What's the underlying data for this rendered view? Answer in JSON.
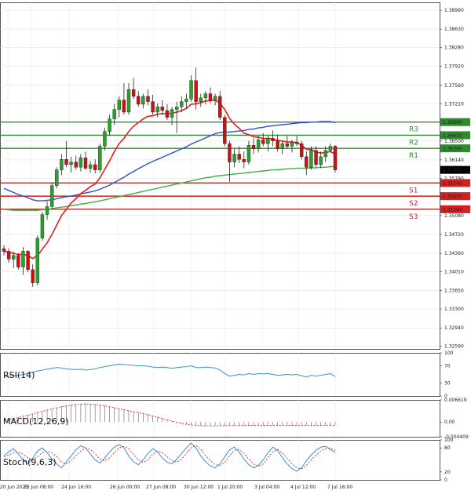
{
  "chart_data": {
    "type": "candlestick",
    "instrument_panels": [
      {
        "name": "price",
        "type": "candlestick"
      },
      {
        "name": "RSI",
        "label": "RSI(14)"
      },
      {
        "name": "MACD",
        "label": "MACD(12,26,9)"
      },
      {
        "name": "Stoch",
        "label": "Stoch(9,6,3)"
      }
    ],
    "price_axis": {
      "ylim": [
        1.3254,
        1.3914
      ],
      "ticks": [
        "1.38990",
        "1.38630",
        "1.38280",
        "1.37920",
        "1.37560",
        "1.37210",
        "1.36860",
        "1.36500",
        "1.36140",
        "1.35790",
        "1.35440",
        "1.35080",
        "1.34720",
        "1.34360",
        "1.34010",
        "1.33650",
        "1.33300",
        "1.32940",
        "1.32590"
      ]
    },
    "x_axis_labels": [
      "20 Jun 2025",
      "23 Jun 08:00",
      "24 Jun 16:00",
      "26 Jun 00:00",
      "27 Jun 08:00",
      "30 Jun 12:00",
      "1 Jul 20:00",
      "3 Jul 04:00",
      "4 Jul 12:00",
      "7 Jul 16:00"
    ],
    "current_price": {
      "label": "1.35950",
      "value": 1.3595
    },
    "levels": [
      {
        "name": "R3",
        "price_label": "1.36860",
        "value": 1.3686,
        "color": "#2e8b2e"
      },
      {
        "name": "R2",
        "price_label": "1.36610",
        "value": 1.3661,
        "color": "#2e8b2e"
      },
      {
        "name": "R1",
        "price_label": "1.36360",
        "value": 1.3636,
        "color": "#2e8b2e"
      },
      {
        "name": "S1",
        "price_label": "1.35700",
        "value": 1.357,
        "color": "#d42020"
      },
      {
        "name": "S2",
        "price_label": "1.35450",
        "value": 1.3545,
        "color": "#d42020"
      },
      {
        "name": "S3",
        "price_label": "1.35200",
        "value": 1.352,
        "color": "#d42020"
      }
    ],
    "candles": [
      [
        1.3445,
        1.3452,
        1.3432,
        1.344
      ],
      [
        1.344,
        1.3446,
        1.3418,
        1.3425
      ],
      [
        1.3425,
        1.344,
        1.3408,
        1.3432
      ],
      [
        1.3432,
        1.3436,
        1.3405,
        1.341
      ],
      [
        1.341,
        1.3448,
        1.3395,
        1.344
      ],
      [
        1.344,
        1.3442,
        1.34,
        1.3405
      ],
      [
        1.3405,
        1.3415,
        1.3372,
        1.338
      ],
      [
        1.338,
        1.347,
        1.3375,
        1.3465
      ],
      [
        1.3465,
        1.3515,
        1.346,
        1.351
      ],
      [
        1.351,
        1.3535,
        1.35,
        1.3525
      ],
      [
        1.3525,
        1.357,
        1.352,
        1.3565
      ],
      [
        1.3565,
        1.36,
        1.356,
        1.3595
      ],
      [
        1.3595,
        1.3625,
        1.3585,
        1.3615
      ],
      [
        1.3615,
        1.365,
        1.36,
        1.3605
      ],
      [
        1.3605,
        1.362,
        1.359,
        1.361
      ],
      [
        1.361,
        1.3622,
        1.3595,
        1.36
      ],
      [
        1.36,
        1.3625,
        1.3592,
        1.3618
      ],
      [
        1.3618,
        1.363,
        1.3595,
        1.3598
      ],
      [
        1.3598,
        1.3612,
        1.359,
        1.3605
      ],
      [
        1.3605,
        1.3615,
        1.3588,
        1.3595
      ],
      [
        1.3595,
        1.3645,
        1.359,
        1.364
      ],
      [
        1.364,
        1.3675,
        1.3632,
        1.3668
      ],
      [
        1.3668,
        1.37,
        1.366,
        1.3692
      ],
      [
        1.3692,
        1.372,
        1.368,
        1.371
      ],
      [
        1.371,
        1.3735,
        1.3695,
        1.3728
      ],
      [
        1.3728,
        1.376,
        1.37,
        1.3705
      ],
      [
        1.3705,
        1.376,
        1.37,
        1.3748
      ],
      [
        1.3748,
        1.377,
        1.373,
        1.3735
      ],
      [
        1.3735,
        1.3745,
        1.3715,
        1.372
      ],
      [
        1.372,
        1.374,
        1.3712,
        1.3735
      ],
      [
        1.3735,
        1.3748,
        1.3718,
        1.3725
      ],
      [
        1.3725,
        1.3738,
        1.37,
        1.3705
      ],
      [
        1.3705,
        1.3722,
        1.3695,
        1.3715
      ],
      [
        1.3715,
        1.3728,
        1.37,
        1.3708
      ],
      [
        1.3708,
        1.372,
        1.369,
        1.3695
      ],
      [
        1.3695,
        1.3715,
        1.368,
        1.371
      ],
      [
        1.371,
        1.3725,
        1.3665,
        1.3715
      ],
      [
        1.3715,
        1.3735,
        1.3705,
        1.3725
      ],
      [
        1.3725,
        1.374,
        1.3712,
        1.373
      ],
      [
        1.373,
        1.3775,
        1.3725,
        1.3765
      ],
      [
        1.3765,
        1.379,
        1.371,
        1.3725
      ],
      [
        1.3725,
        1.374,
        1.3715,
        1.3732
      ],
      [
        1.3732,
        1.3745,
        1.372,
        1.374
      ],
      [
        1.374,
        1.3752,
        1.3722,
        1.3728
      ],
      [
        1.3728,
        1.374,
        1.3718,
        1.3735
      ],
      [
        1.3735,
        1.3745,
        1.369,
        1.3695
      ],
      [
        1.3695,
        1.37,
        1.364,
        1.3645
      ],
      [
        1.3645,
        1.365,
        1.3572,
        1.361
      ],
      [
        1.361,
        1.3635,
        1.36,
        1.3625
      ],
      [
        1.3625,
        1.364,
        1.3608,
        1.3615
      ],
      [
        1.3615,
        1.363,
        1.3598,
        1.361
      ],
      [
        1.361,
        1.365,
        1.3605,
        1.3642
      ],
      [
        1.3642,
        1.3655,
        1.3625,
        1.3635
      ],
      [
        1.3635,
        1.366,
        1.3628,
        1.3652
      ],
      [
        1.3652,
        1.3665,
        1.364,
        1.3645
      ],
      [
        1.3645,
        1.366,
        1.363,
        1.3655
      ],
      [
        1.3655,
        1.367,
        1.364,
        1.365
      ],
      [
        1.365,
        1.3662,
        1.363,
        1.3635
      ],
      [
        1.3635,
        1.365,
        1.3625,
        1.3645
      ],
      [
        1.3645,
        1.366,
        1.3635,
        1.364
      ],
      [
        1.364,
        1.3652,
        1.3628,
        1.3648
      ],
      [
        1.3648,
        1.366,
        1.364,
        1.3645
      ],
      [
        1.3645,
        1.365,
        1.3615,
        1.362
      ],
      [
        1.362,
        1.363,
        1.3585,
        1.36
      ],
      [
        1.36,
        1.364,
        1.3595,
        1.3632
      ],
      [
        1.3632,
        1.364,
        1.36,
        1.3605
      ],
      [
        1.3605,
        1.363,
        1.3598,
        1.362
      ],
      [
        1.362,
        1.364,
        1.361,
        1.3632
      ],
      [
        1.3632,
        1.3645,
        1.3628,
        1.364
      ],
      [
        1.364,
        1.3642,
        1.359,
        1.3595
      ]
    ],
    "ema_red": [
      1.344,
      1.3438,
      1.3436,
      1.3434,
      1.3434,
      1.3432,
      1.3426,
      1.3432,
      1.3444,
      1.3456,
      1.3472,
      1.349,
      1.3508,
      1.352,
      1.3532,
      1.354,
      1.355,
      1.3556,
      1.3563,
      1.3568,
      1.358,
      1.3596,
      1.3612,
      1.363,
      1.3645,
      1.3655,
      1.3668,
      1.3678,
      1.3685,
      1.3692,
      1.3697,
      1.3698,
      1.3701,
      1.3702,
      1.3702,
      1.3703,
      1.3705,
      1.3708,
      1.3712,
      1.372,
      1.3721,
      1.3723,
      1.3726,
      1.3727,
      1.3728,
      1.3722,
      1.371,
      1.3693,
      1.3682,
      1.3674,
      1.3665,
      1.3662,
      1.3658,
      1.3657,
      1.3655,
      1.3655,
      1.3654,
      1.3651,
      1.365,
      1.3648,
      1.3648,
      1.3647,
      1.3642,
      1.3634,
      1.3634,
      1.3629,
      1.3627,
      1.3628,
      1.363,
      1.3625
    ],
    "ema_blue": [
      1.356,
      1.3556,
      1.3552,
      1.3548,
      1.3545,
      1.3542,
      1.3538,
      1.3536,
      1.3536,
      1.3537,
      1.3538,
      1.354,
      1.3542,
      1.3544,
      1.3545,
      1.3547,
      1.3549,
      1.3551,
      1.3553,
      1.3555,
      1.3558,
      1.3562,
      1.3566,
      1.3571,
      1.3576,
      1.3581,
      1.3587,
      1.3592,
      1.3597,
      1.3602,
      1.3607,
      1.3611,
      1.3615,
      1.3619,
      1.3623,
      1.3627,
      1.3631,
      1.3635,
      1.3639,
      1.3644,
      1.3648,
      1.3652,
      1.3656,
      1.366,
      1.3664,
      1.3666,
      1.3667,
      1.3667,
      1.3668,
      1.3669,
      1.367,
      1.3672,
      1.3673,
      1.3675,
      1.3676,
      1.3678,
      1.3679,
      1.368,
      1.3681,
      1.3682,
      1.3683,
      1.3684,
      1.3685,
      1.3685,
      1.3686,
      1.3686,
      1.3687,
      1.3687,
      1.3687,
      1.3685
    ],
    "ema_green": [
      1.352,
      1.3519,
      1.3518,
      1.3518,
      1.3518,
      1.3518,
      1.3518,
      1.3518,
      1.3519,
      1.352,
      1.3521,
      1.3523,
      1.3524,
      1.3525,
      1.3527,
      1.3528,
      1.353,
      1.3531,
      1.3533,
      1.3534,
      1.3536,
      1.3538,
      1.354,
      1.3542,
      1.3544,
      1.3546,
      1.3548,
      1.355,
      1.3552,
      1.3554,
      1.3556,
      1.3558,
      1.356,
      1.3562,
      1.3564,
      1.3566,
      1.3568,
      1.357,
      1.3572,
      1.3574,
      1.3576,
      1.3578,
      1.358,
      1.3581,
      1.3583,
      1.3584,
      1.3585,
      1.3586,
      1.3587,
      1.3588,
      1.3589,
      1.359,
      1.3591,
      1.3592,
      1.3593,
      1.3594,
      1.3595,
      1.3595,
      1.3596,
      1.3597,
      1.3597,
      1.3598,
      1.3598,
      1.3598,
      1.3599,
      1.3599,
      1.36,
      1.36,
      1.3601,
      1.3601
    ],
    "rsi": {
      "ylim": [
        0,
        100
      ],
      "ticks": [
        "100",
        "70",
        "30",
        "0"
      ],
      "values": [
        45,
        46,
        48,
        47,
        50,
        52,
        55,
        58,
        60,
        62,
        64,
        66,
        65,
        63,
        62,
        61,
        62,
        60,
        61,
        63,
        66,
        68,
        70,
        72,
        74,
        73,
        72,
        71,
        70,
        70,
        69,
        67,
        66,
        67,
        66,
        64,
        66,
        67,
        68,
        70,
        66,
        66,
        67,
        66,
        65,
        60,
        52,
        46,
        48,
        50,
        49,
        52,
        50,
        52,
        51,
        52,
        50,
        48,
        49,
        50,
        49,
        50,
        47,
        44,
        48,
        46,
        48,
        50,
        52,
        45
      ]
    },
    "macd": {
      "ylim": [
        -0.0044,
        0.00662
      ],
      "ticks": [
        "0.006619",
        "0.00",
        "-0.004409"
      ],
      "hist": [
        0.0005,
        0.0008,
        0.0011,
        0.0014,
        0.0018,
        0.0021,
        0.0025,
        0.0029,
        0.0033,
        0.0037,
        0.0041,
        0.0044,
        0.0047,
        0.005,
        0.0052,
        0.0054,
        0.0055,
        0.0056,
        0.0055,
        0.0054,
        0.0052,
        0.005,
        0.0047,
        0.0044,
        0.0041,
        0.0038,
        0.0035,
        0.0032,
        0.0029,
        0.0026,
        0.0023,
        0.0019,
        0.0015,
        0.0011,
        0.0007,
        0.0003,
        -0.0001,
        -0.0004,
        -0.0007,
        -0.0009,
        -0.001,
        -0.0011,
        -0.0012,
        -0.0012,
        -0.0012,
        -0.0012,
        -0.0011,
        -0.0011,
        -0.0011,
        -0.0011,
        -0.001,
        -0.001,
        -0.001,
        -0.001,
        -0.001,
        -0.001,
        -0.001,
        -0.001,
        -0.001,
        -0.001,
        -0.001,
        -0.001,
        -0.001,
        -0.001,
        -0.001,
        -0.001,
        -0.001,
        -0.001,
        -0.001,
        -0.001
      ]
    },
    "stoch": {
      "ylim": [
        0,
        100
      ],
      "ticks": [
        "100",
        "80",
        "20",
        "0"
      ],
      "k": [
        60,
        70,
        78,
        65,
        50,
        40,
        55,
        72,
        80,
        68,
        52,
        40,
        30,
        45,
        60,
        75,
        85,
        80,
        65,
        50,
        42,
        55,
        70,
        82,
        88,
        80,
        60,
        45,
        38,
        50,
        66,
        78,
        70,
        55,
        44,
        40,
        52,
        66,
        80,
        92,
        80,
        60,
        45,
        35,
        30,
        40,
        58,
        75,
        82,
        70,
        52,
        38,
        30,
        36,
        50,
        68,
        82,
        74,
        56,
        40,
        28,
        22,
        30,
        48,
        62,
        74,
        82,
        84,
        76,
        68
      ],
      "d": [
        58,
        62,
        68,
        70,
        64,
        55,
        50,
        58,
        68,
        72,
        68,
        58,
        45,
        40,
        48,
        60,
        72,
        80,
        76,
        65,
        52,
        48,
        55,
        68,
        80,
        84,
        78,
        64,
        50,
        44,
        50,
        64,
        72,
        68,
        58,
        48,
        44,
        52,
        66,
        80,
        86,
        76,
        60,
        48,
        38,
        36,
        44,
        60,
        74,
        76,
        66,
        52,
        40,
        34,
        40,
        56,
        70,
        76,
        68,
        54,
        40,
        30,
        28,
        36,
        50,
        62,
        72,
        78,
        80,
        74
      ]
    }
  }
}
